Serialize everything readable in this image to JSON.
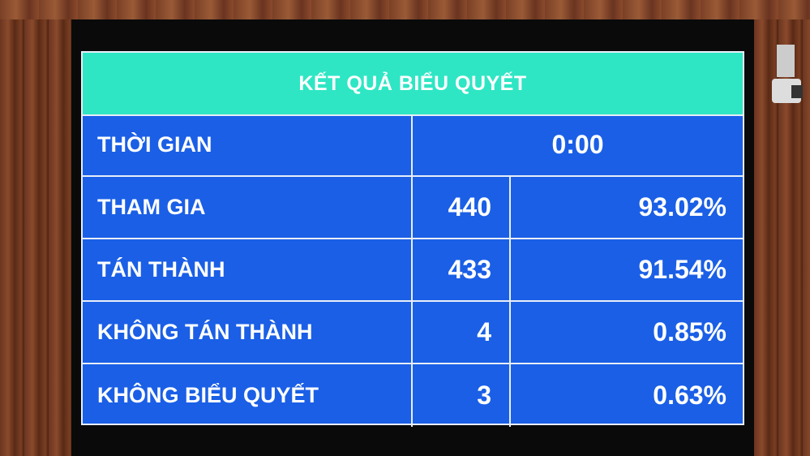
{
  "board": {
    "title": "KẾT QUẢ BIỂU QUYẾT",
    "time": {
      "label": "THỜI GIAN",
      "value": "0:00"
    },
    "rows": [
      {
        "label": "THAM GIA",
        "count": "440",
        "percent": "93.02%"
      },
      {
        "label": "TÁN THÀNH",
        "count": "433",
        "percent": "91.54%"
      },
      {
        "label": "KHÔNG TÁN THÀNH",
        "count": "4",
        "percent": "0.85%"
      },
      {
        "label": "KHÔNG BIỂU QUYẾT",
        "count": "3",
        "percent": "0.63%"
      }
    ]
  },
  "colors": {
    "header": "#2ee6c4",
    "body": "#1a5fe6",
    "text": "#ffffff"
  }
}
